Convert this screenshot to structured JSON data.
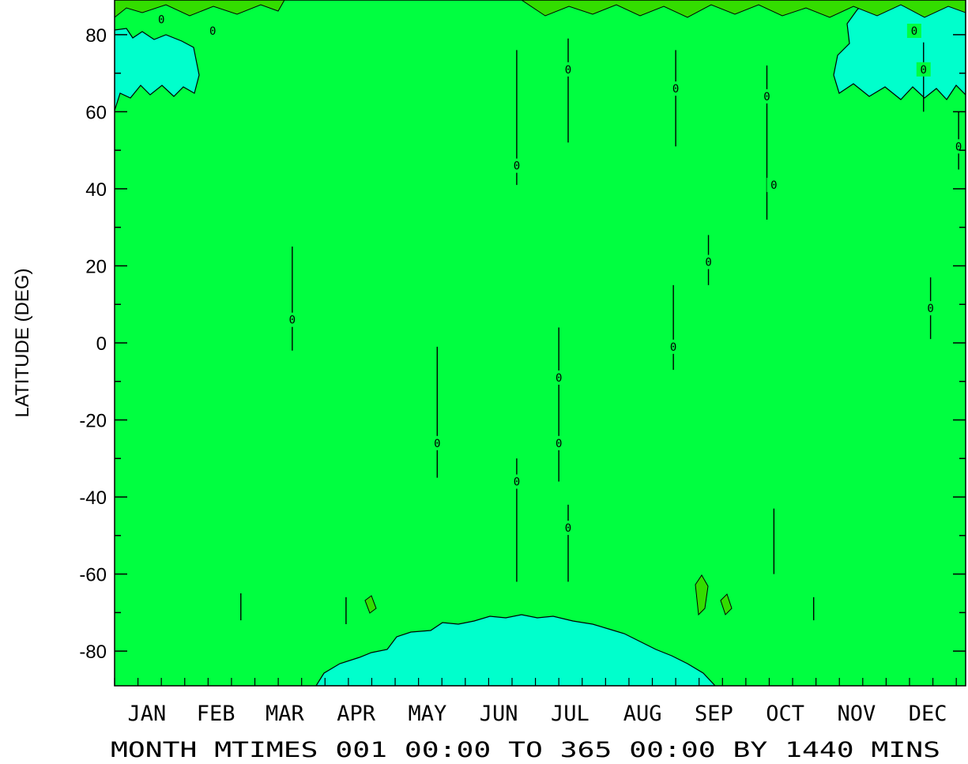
{
  "chart_data": {
    "type": "heatmap",
    "title": "",
    "xlabel": "MONTH MTIMES 001 00:00 TO 365 00:00 BY 1440 MINS",
    "ylabel": "LATITUDE (DEG)",
    "xlim": [
      1,
      365
    ],
    "ylim": [
      -89,
      89
    ],
    "x_tick_labels": [
      "JAN",
      "FEB",
      "MAR",
      "APR",
      "MAY",
      "JUN",
      "JUL",
      "AUG",
      "SEP",
      "OCT",
      "NOV",
      "DEC"
    ],
    "y_ticks": [
      80,
      60,
      40,
      20,
      0,
      -20,
      -40,
      -60,
      -80
    ],
    "y_tick_labels": [
      "80",
      "60",
      "40",
      "20",
      "0",
      "-20",
      "-40",
      "-60",
      "-80"
    ],
    "grid": false,
    "colors": {
      "background_level": "#00ff40",
      "low_level": "#00ffcc",
      "high_level": "#33dd00",
      "contour_line": "#000000"
    },
    "contour_labels": [
      {
        "day": 21,
        "lat": 84,
        "text": "0"
      },
      {
        "day": 43,
        "lat": 81,
        "text": "0"
      },
      {
        "day": 343,
        "lat": 81,
        "text": "0"
      },
      {
        "day": 371,
        "lat": 84,
        "text": "0"
      },
      {
        "day": 395,
        "lat": 81,
        "text": "0"
      },
      {
        "day": 77,
        "lat": 6,
        "text": "0"
      },
      {
        "day": 139,
        "lat": -26,
        "text": "0"
      },
      {
        "day": 173,
        "lat": 46,
        "text": "0"
      },
      {
        "day": 173,
        "lat": -36,
        "text": "0"
      },
      {
        "day": 191,
        "lat": -9,
        "text": "0"
      },
      {
        "day": 191,
        "lat": -26,
        "text": "0"
      },
      {
        "day": 195,
        "lat": 71,
        "text": "0"
      },
      {
        "day": 195,
        "lat": -48,
        "text": "0"
      },
      {
        "day": 240,
        "lat": -1,
        "text": "0"
      },
      {
        "day": 241,
        "lat": 66,
        "text": "0"
      },
      {
        "day": 255,
        "lat": 21,
        "text": "0"
      },
      {
        "day": 280,
        "lat": 64,
        "text": "0"
      },
      {
        "day": 283,
        "lat": 41,
        "text": "0"
      },
      {
        "day": 350,
        "lat": 9,
        "text": "0"
      },
      {
        "day": 362,
        "lat": 51,
        "text": "0"
      },
      {
        "day": 370,
        "lat": 21,
        "text": "0"
      },
      {
        "day": 382,
        "lat": 9,
        "text": "0"
      },
      {
        "day": 347,
        "lat": 71,
        "text": "0"
      },
      {
        "day": 382,
        "lat": 19,
        "text": "0"
      },
      {
        "day": 397,
        "lat": 51,
        "text": "0"
      }
    ]
  }
}
